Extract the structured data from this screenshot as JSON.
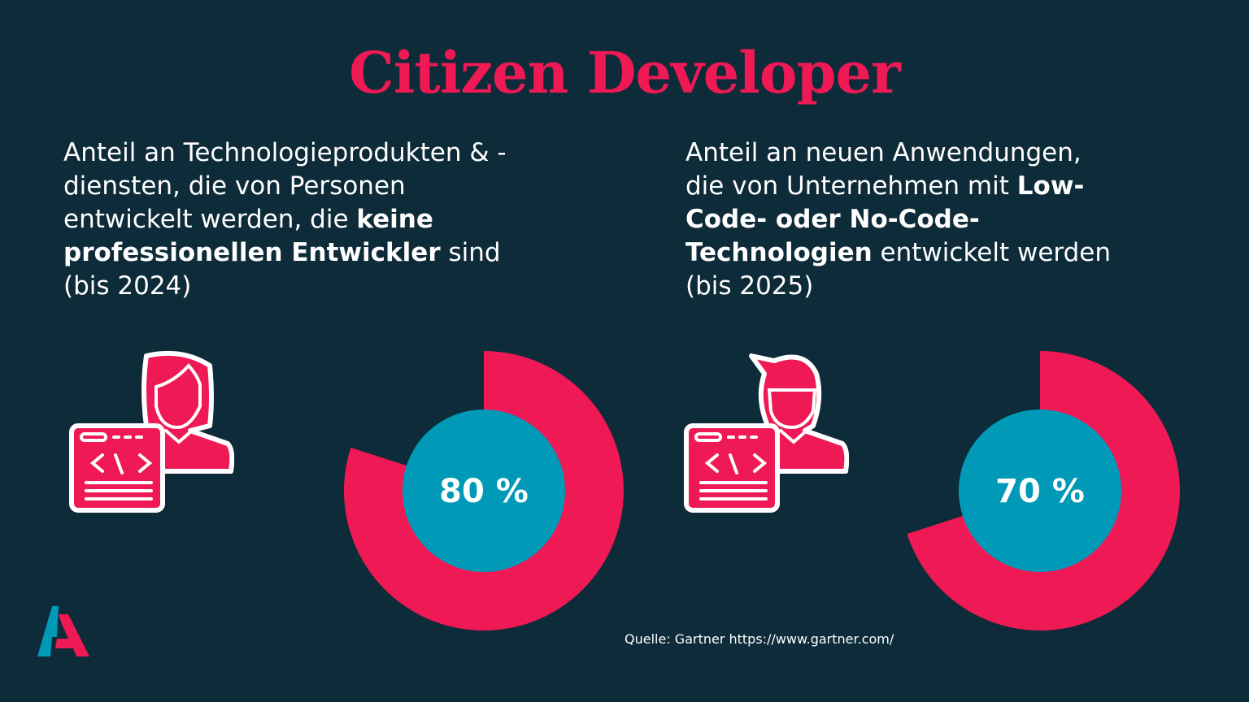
{
  "title": "Citizen Developer",
  "left": {
    "parts": [
      {
        "text": "Anteil an Technologieprodukten & -diensten, die von Personen entwickelt werden, die ",
        "bold": false
      },
      {
        "text": "keine professionellen Entwickler",
        "bold": true
      },
      {
        "text": " sind (bis 2024)",
        "bold": false
      }
    ],
    "value_label": "80 %"
  },
  "right": {
    "parts": [
      {
        "text": "Anteil an neuen Anwendungen, die von Unternehmen mit ",
        "bold": false
      },
      {
        "text": "Low-Code- oder No-Code-Technologien",
        "bold": true
      },
      {
        "text": " entwickelt werden (bis 2025)",
        "bold": false
      }
    ],
    "value_label": "70 %"
  },
  "source": "Quelle: Gartner https://www.gartner.com/",
  "colors": {
    "background": "#0d2b38",
    "accent": "#ee1955",
    "inner": "#0099b8"
  },
  "chart_data": [
    {
      "type": "pie",
      "style": "donut",
      "values": [
        80
      ],
      "unit": "%",
      "label": "80 %"
    },
    {
      "type": "pie",
      "style": "donut",
      "values": [
        70
      ],
      "unit": "%",
      "label": "70 %"
    }
  ]
}
